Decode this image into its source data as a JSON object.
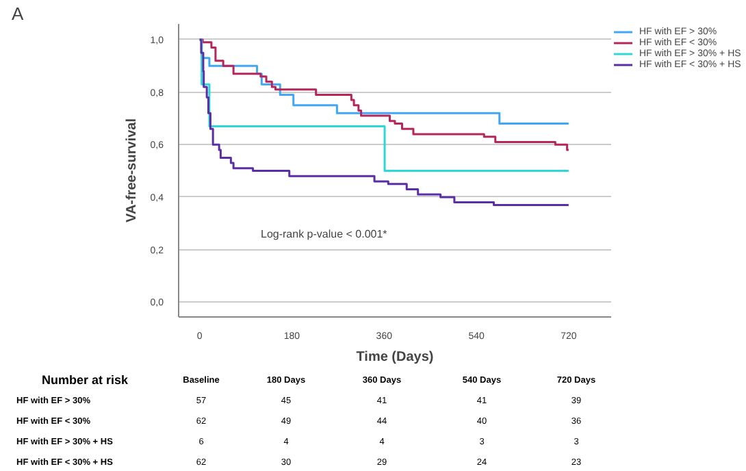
{
  "chart_data": {
    "type": "step",
    "xlabel": "Time (Days)",
    "ylabel": "VA-free-survival",
    "xlim": [
      -41,
      803
    ],
    "ylim": [
      -0.057,
      1.06
    ],
    "xticks": [
      0,
      180,
      360,
      540,
      720
    ],
    "yticks": [
      {
        "value": 0,
        "label": "0,0"
      },
      {
        "value": 0.2,
        "label": "0,2"
      },
      {
        "value": 0.4,
        "label": "0,4"
      },
      {
        "value": 0.6,
        "label": "0,6"
      },
      {
        "value": 0.8,
        "label": "0,8"
      },
      {
        "value": 1,
        "label": "1,0"
      }
    ],
    "grid": "y",
    "legend": "top right",
    "series": [
      {
        "name": "HF with EF > 30%",
        "color": "#41a7f5",
        "x": [
          0,
          4,
          19,
          112,
          121,
          157,
          183,
          268,
          585,
          720
        ],
        "values": [
          1,
          0.93,
          0.9,
          0.87,
          0.83,
          0.79,
          0.75,
          0.72,
          0.68,
          0.68
        ]
      },
      {
        "name": "HF with EF < 30%",
        "color": "#b5265a",
        "x": [
          0,
          6,
          23,
          31,
          46,
          66,
          119,
          130,
          141,
          148,
          227,
          296,
          301,
          310,
          315,
          371,
          381,
          395,
          417,
          555,
          577,
          694,
          717,
          720
        ],
        "values": [
          1,
          0.99,
          0.97,
          0.92,
          0.9,
          0.87,
          0.86,
          0.84,
          0.82,
          0.81,
          0.79,
          0.77,
          0.75,
          0.73,
          0.71,
          0.69,
          0.68,
          0.66,
          0.64,
          0.63,
          0.61,
          0.6,
          0.58,
          0.58
        ]
      },
      {
        "name": "HF with EF > 30% + HS",
        "color": "#2ed8d8",
        "x": [
          0,
          4,
          19,
          361,
          720
        ],
        "values": [
          1,
          0.83,
          0.67,
          0.5,
          0.5
        ]
      },
      {
        "name": "HF with EF < 30% + HS",
        "color": "#5b2ea6",
        "x": [
          0,
          3,
          7,
          8,
          14,
          17,
          21,
          26,
          38,
          41,
          61,
          66,
          104,
          175,
          341,
          368,
          404,
          426,
          470,
          497,
          574,
          720
        ],
        "values": [
          1,
          0.95,
          0.88,
          0.82,
          0.78,
          0.72,
          0.66,
          0.6,
          0.58,
          0.55,
          0.53,
          0.51,
          0.5,
          0.48,
          0.46,
          0.45,
          0.43,
          0.41,
          0.4,
          0.38,
          0.37,
          0.37
        ]
      }
    ],
    "annotations": [
      "A",
      "Log-rank p-value < 0.001*",
      "Number at risk",
      "Baseline",
      "180 Days",
      "360 Days",
      "540 Days",
      "720 Days",
      "HF with EF > 30%",
      "57",
      "45",
      "41",
      "41",
      "39",
      "HF with EF < 30%",
      "62",
      "49",
      "44",
      "40",
      "36",
      "HF with EF > 30% + HS",
      "6",
      "4",
      "4",
      "3",
      "3",
      "HF with EF < 30% + HS",
      "62",
      "30",
      "29",
      "24",
      "23"
    ]
  }
}
